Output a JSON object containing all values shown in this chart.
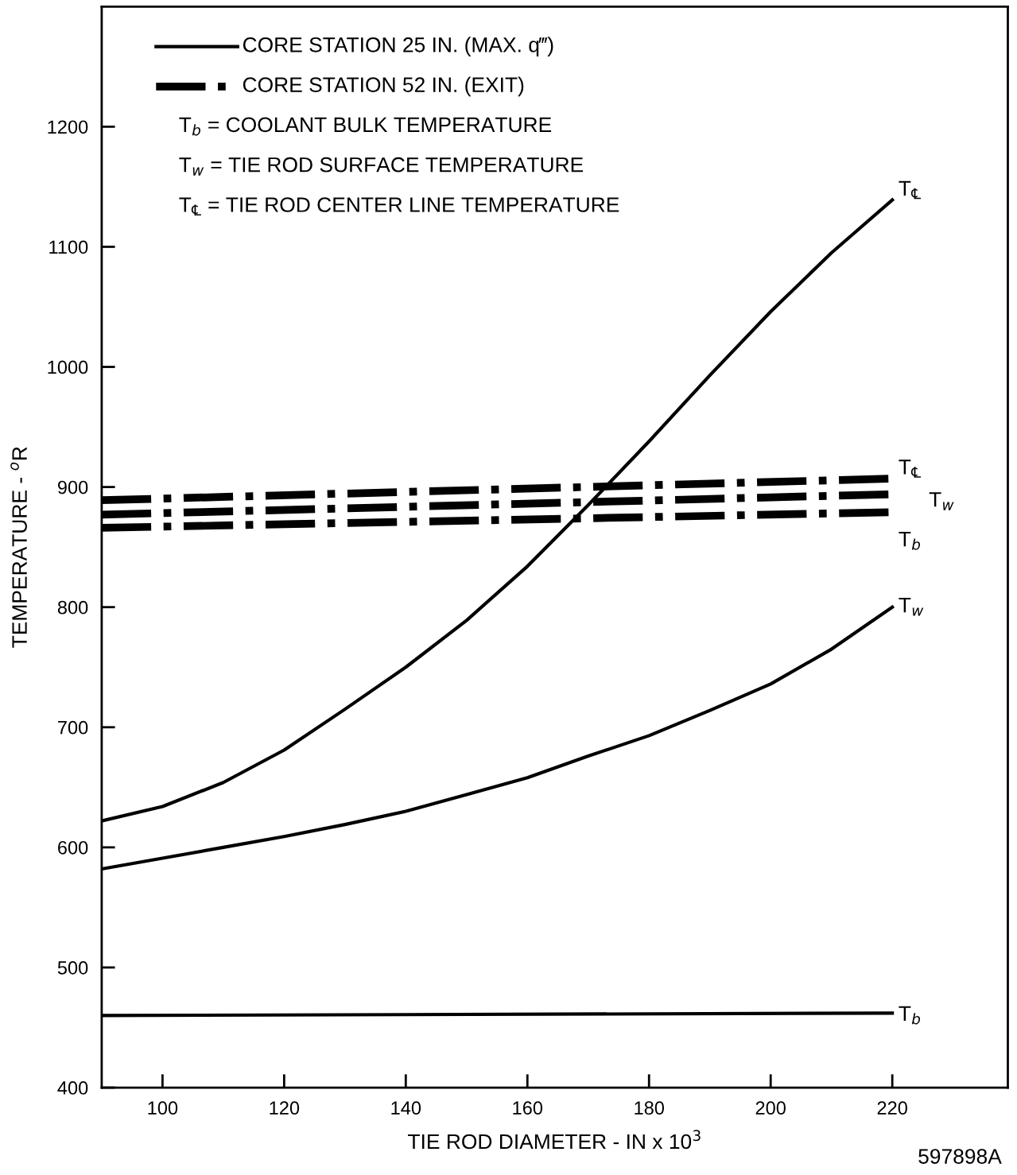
{
  "chart_data": {
    "type": "line",
    "xlabel": "TIE ROD DIAMETER - IN x 10$^{3}$",
    "ylabel": "TEMPERATURE - $^{o}$R",
    "xlim": [
      90,
      239
    ],
    "xticks": [
      100,
      120,
      140,
      160,
      180,
      200,
      220
    ],
    "ylim": [
      400,
      1300
    ],
    "yticks": [
      400,
      500,
      600,
      700,
      800,
      900,
      1000,
      1100,
      1200
    ],
    "grid": false,
    "legend": false,
    "marker": "none",
    "series": [
      {
        "name": "T$_{℄}$",
        "color": "#000000",
        "line_style": "solid",
        "x": [
          90,
          100,
          110,
          120,
          130,
          140,
          150,
          160,
          170,
          180,
          190,
          200,
          210,
          220
        ],
        "values": [
          622,
          634,
          654,
          681,
          715,
          750,
          789,
          834,
          885,
          938,
          993,
          1046,
          1095,
          1139
        ]
      },
      {
        "name": "T$_{w}$",
        "color": "#000000",
        "line_style": "solid",
        "x": [
          90,
          100,
          110,
          120,
          130,
          140,
          150,
          160,
          170,
          180,
          190,
          200,
          210,
          220
        ],
        "values": [
          582,
          591,
          600,
          609,
          619,
          630,
          644,
          658,
          676,
          693,
          714,
          736,
          765,
          800
        ]
      },
      {
        "name": "T$_{b}$",
        "color": "#000000",
        "line_style": "solid",
        "x": [
          90,
          220
        ],
        "values": [
          460,
          462
        ]
      },
      {
        "name": "T$_{℄}$",
        "color": "#000000",
        "line_style": "dashdot",
        "x": [
          90,
          220
        ],
        "values": [
          889,
          907
        ]
      },
      {
        "name": "T$_{w}$",
        "color": "#000000",
        "line_style": "dashdot",
        "x": [
          90,
          220
        ],
        "values": [
          877,
          894
        ]
      },
      {
        "name": "T$_{b}$",
        "color": "#000000",
        "line_style": "dashdot",
        "x": [
          90,
          220
        ],
        "values": [
          866,
          879
        ]
      }
    ],
    "annotations": [
      "CORE STATION 25 IN. (MAX. q‴)",
      "CORE STATION 52 IN. (EXIT)",
      "T$_{b}$ = COOLANT BULK TEMPERATURE",
      "T$_{w}$ = TIE ROD SURFACE TEMPERATURE",
      "T$_{℄}$ = TIE ROD CENTER LINE TEMPERATURE",
      "597898A"
    ]
  }
}
